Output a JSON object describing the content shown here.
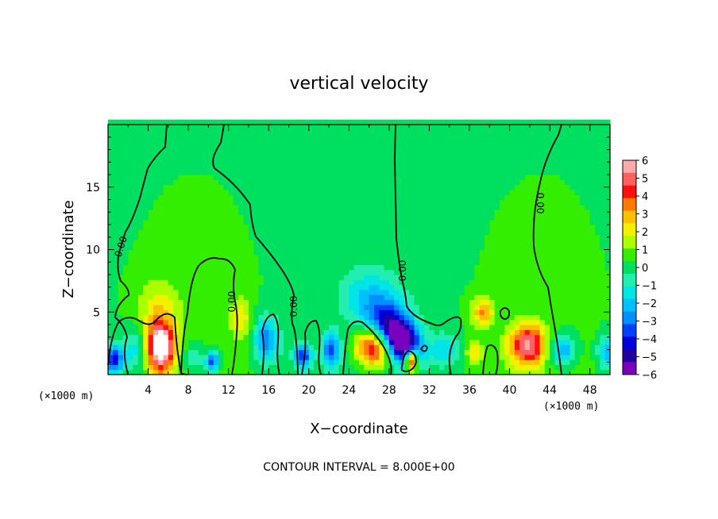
{
  "chart_data": {
    "type": "heatmap",
    "title": "vertical velocity",
    "xlabel": "X−coordinate",
    "ylabel": "Z−coordinate",
    "x_unit_left": "(×1000 m)",
    "x_unit_right": "(×1000 m)",
    "xlim": [
      0,
      50
    ],
    "ylim": [
      0,
      20
    ],
    "x_ticks": [
      4,
      8,
      12,
      16,
      20,
      24,
      28,
      32,
      36,
      40,
      44,
      48
    ],
    "x_tick_labels": [
      "4",
      "8",
      "12",
      "16",
      "20",
      "24",
      "28",
      "32",
      "36",
      "40",
      "44",
      "48"
    ],
    "y_ticks": [
      5,
      10,
      15
    ],
    "y_tick_labels": [
      "5",
      "10",
      "15"
    ],
    "contour_interval_text": "CONTOUR INTERVAL = 8.000E+00",
    "contour_labels": [
      "0.00",
      "0.00",
      "0.00",
      "0.00",
      "0.00"
    ],
    "colorbar": {
      "labels": [
        "6",
        "5",
        "4",
        "3",
        "2",
        "1",
        "0",
        "−1",
        "−2",
        "−3",
        "−4",
        "−5",
        "−6"
      ],
      "colors": [
        "#ffaaaa",
        "#ff6060",
        "#ff1010",
        "#ff7a00",
        "#ffc000",
        "#f2f200",
        "#aaff00",
        "#33ee00",
        "#00e060",
        "#22eeb0",
        "#00e6e6",
        "#00c0ff",
        "#0090ff",
        "#0040ff",
        "#0000dd",
        "#2000a0",
        "#7a00c0"
      ]
    },
    "background_value": 0.3,
    "features": [
      {
        "x": 5.2,
        "z": 2.2,
        "amp": 7.2,
        "sx": 1.0,
        "sz": 1.4
      },
      {
        "x": 5.1,
        "z": 5.5,
        "amp": 1.6,
        "sx": 1.5,
        "sz": 1.6
      },
      {
        "x": 13.2,
        "z": 4.5,
        "amp": 2.0,
        "sx": 0.7,
        "sz": 1.2
      },
      {
        "x": 26.5,
        "z": 2.2,
        "amp": 5.0,
        "sx": 1.3,
        "sz": 1.1
      },
      {
        "x": 37.3,
        "z": 5.0,
        "amp": 2.8,
        "sx": 0.8,
        "sz": 0.8
      },
      {
        "x": 41.8,
        "z": 2.4,
        "amp": 5.0,
        "sx": 1.3,
        "sz": 1.2
      },
      {
        "x": 36.5,
        "z": 1.8,
        "amp": 2.0,
        "sx": 0.6,
        "sz": 0.6
      },
      {
        "x": 30.2,
        "z": 1.2,
        "amp": 7.0,
        "sx": 0.45,
        "sz": 0.7
      },
      {
        "x": 28.7,
        "z": 3.2,
        "amp": -5.0,
        "sx": 1.3,
        "sz": 1.0
      },
      {
        "x": 29.8,
        "z": 2.0,
        "amp": -5.0,
        "sx": 1.1,
        "sz": 1.0
      },
      {
        "x": 27.6,
        "z": 4.6,
        "amp": -3.0,
        "sx": 1.6,
        "sz": 1.2
      },
      {
        "x": 26.0,
        "z": 6.5,
        "amp": -1.8,
        "sx": 2.0,
        "sz": 1.5
      },
      {
        "x": 15.8,
        "z": 2.8,
        "amp": -3.2,
        "sx": 0.9,
        "sz": 1.3
      },
      {
        "x": 22.2,
        "z": 2.0,
        "amp": -4.0,
        "sx": 0.6,
        "sz": 0.9
      },
      {
        "x": 2.8,
        "z": 2.0,
        "amp": -2.0,
        "sx": 1.0,
        "sz": 1.2
      },
      {
        "x": 0.6,
        "z": 1.2,
        "amp": -4.5,
        "sx": 0.6,
        "sz": 0.8
      },
      {
        "x": 10.4,
        "z": 1.0,
        "amp": -4.0,
        "sx": 0.45,
        "sz": 0.6
      },
      {
        "x": 19.4,
        "z": 1.5,
        "amp": -4.0,
        "sx": 0.6,
        "sz": 0.7
      },
      {
        "x": 33.5,
        "z": 2.0,
        "amp": -2.0,
        "sx": 1.0,
        "sz": 0.9
      },
      {
        "x": 45.2,
        "z": 2.0,
        "amp": -3.0,
        "sx": 0.9,
        "sz": 0.9
      },
      {
        "x": 49.6,
        "z": 1.8,
        "amp": -2.5,
        "sx": 0.6,
        "sz": 0.9
      },
      {
        "x": 8.5,
        "z": 1.3,
        "amp": -1.5,
        "sx": 0.8,
        "sz": 0.8
      }
    ]
  }
}
